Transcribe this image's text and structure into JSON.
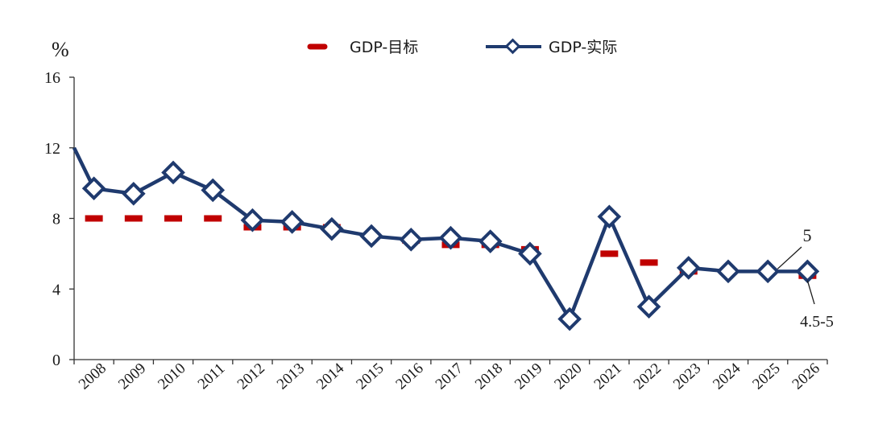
{
  "chart_data": {
    "type": "line",
    "unit_label": "%",
    "categories": [
      "2008",
      "2009",
      "2010",
      "2011",
      "2012",
      "2013",
      "2014",
      "2015",
      "2016",
      "2017",
      "2018",
      "2019",
      "2020",
      "2021",
      "2022",
      "2023",
      "2024",
      "2025",
      "2026"
    ],
    "series": [
      {
        "name": "GDP-目标",
        "style": "dash-marker",
        "color": "#c00000",
        "values": [
          8,
          8,
          8,
          8,
          7.5,
          7.5,
          7.5,
          7,
          6.75,
          6.5,
          6.5,
          6.25,
          null,
          6,
          5.5,
          5,
          5,
          5,
          4.75
        ]
      },
      {
        "name": "GDP-实际",
        "style": "line-diamond",
        "color": "#1f3a6e",
        "values": [
          9.7,
          9.4,
          10.6,
          9.6,
          7.9,
          7.8,
          7.4,
          7.0,
          6.8,
          6.9,
          6.7,
          6.0,
          2.3,
          8.1,
          3.0,
          5.2,
          5.0,
          5.0,
          5.0
        ],
        "line_start_value": 12
      }
    ],
    "ylim": [
      0,
      16
    ],
    "yticks": [
      "0",
      "4",
      "8",
      "12",
      "16"
    ],
    "annotations": [
      {
        "text": "5",
        "target_category": "2025",
        "target_value": 5.0
      },
      {
        "text": "4.5-5",
        "target_category": "2026",
        "target_value": 4.75
      }
    ],
    "legend_position": "top-center",
    "grid": false
  }
}
